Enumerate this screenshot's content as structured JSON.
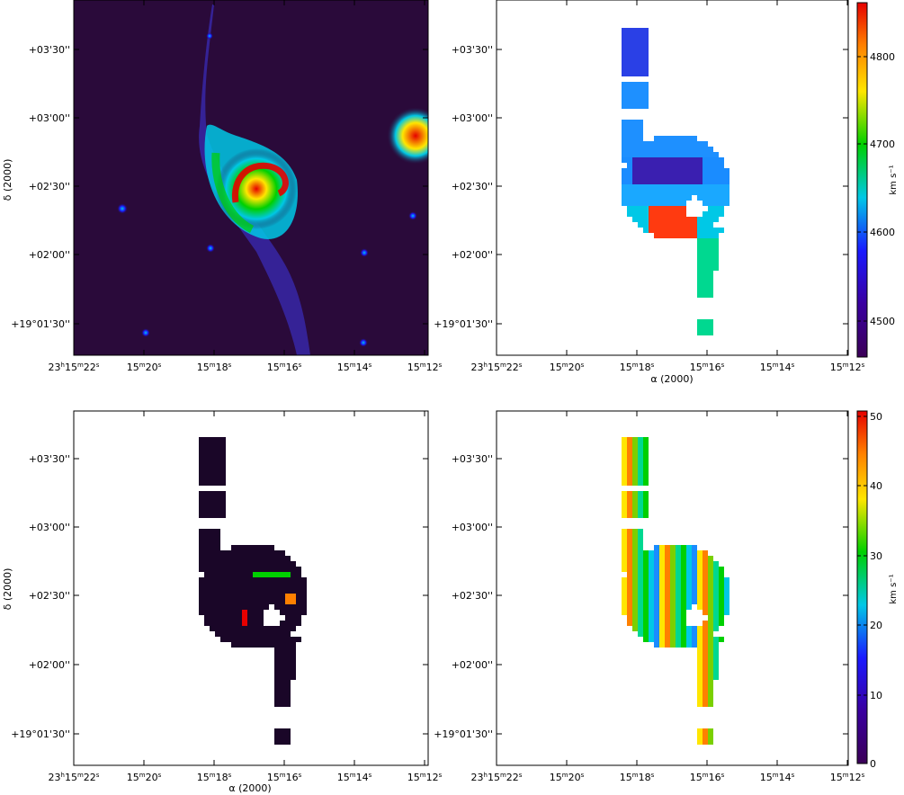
{
  "panels": {
    "top_left": {
      "y_ticks": [
        "+03'30''",
        "+03'00''",
        "+02'30''",
        "+02'00''",
        "+19°01'30''"
      ],
      "y_label": "δ (2000)"
    },
    "top_right": {
      "y_ticks": [
        "+03'30''",
        "+03'00''",
        "+02'30''",
        "+02'00''",
        "+19°01'30''"
      ],
      "x_ticks": [
        "23h15m22s",
        "15m20s",
        "15m18s",
        "15m16s",
        "15m14s",
        "15m12s"
      ],
      "x_label": "α (2000)",
      "colorbar": {
        "ticks": [
          "4800",
          "4700",
          "4600",
          "4500"
        ],
        "unit": "km s⁻¹"
      }
    },
    "bottom_left": {
      "y_ticks": [
        "+03'30''",
        "+03'00''",
        "+02'30''",
        "+02'00''",
        "+19°01'30''"
      ],
      "x_ticks": [
        "23h15m22s",
        "15m20s",
        "15m18s",
        "15m16s",
        "15m14s",
        "15m12s"
      ],
      "x_label": "α (2000)",
      "y_label": "δ (2000)"
    },
    "bottom_right": {
      "y_ticks": [
        "+03'30''",
        "+03'00''",
        "+02'30''",
        "+02'00''",
        "+19°01'30''"
      ],
      "x_ticks": [
        "23h15m22s",
        "15m20s",
        "15m18s",
        "15m16s",
        "15m14s",
        "15m12s"
      ],
      "colorbar": {
        "ticks": [
          "50",
          "40",
          "30",
          "20",
          "10",
          "0"
        ],
        "unit": "km s⁻¹"
      }
    },
    "top_left_x_ticks": [
      "23h15m22s",
      "15m20s",
      "15m18s",
      "15m16s",
      "15m14s",
      "15m12s"
    ]
  },
  "colors": {
    "background_image": "#2a0a3a",
    "spectrum": [
      "#3b0057",
      "#1a1aff",
      "#00c8e6",
      "#00d000",
      "#ffe600",
      "#ff8000",
      "#e60000"
    ]
  }
}
